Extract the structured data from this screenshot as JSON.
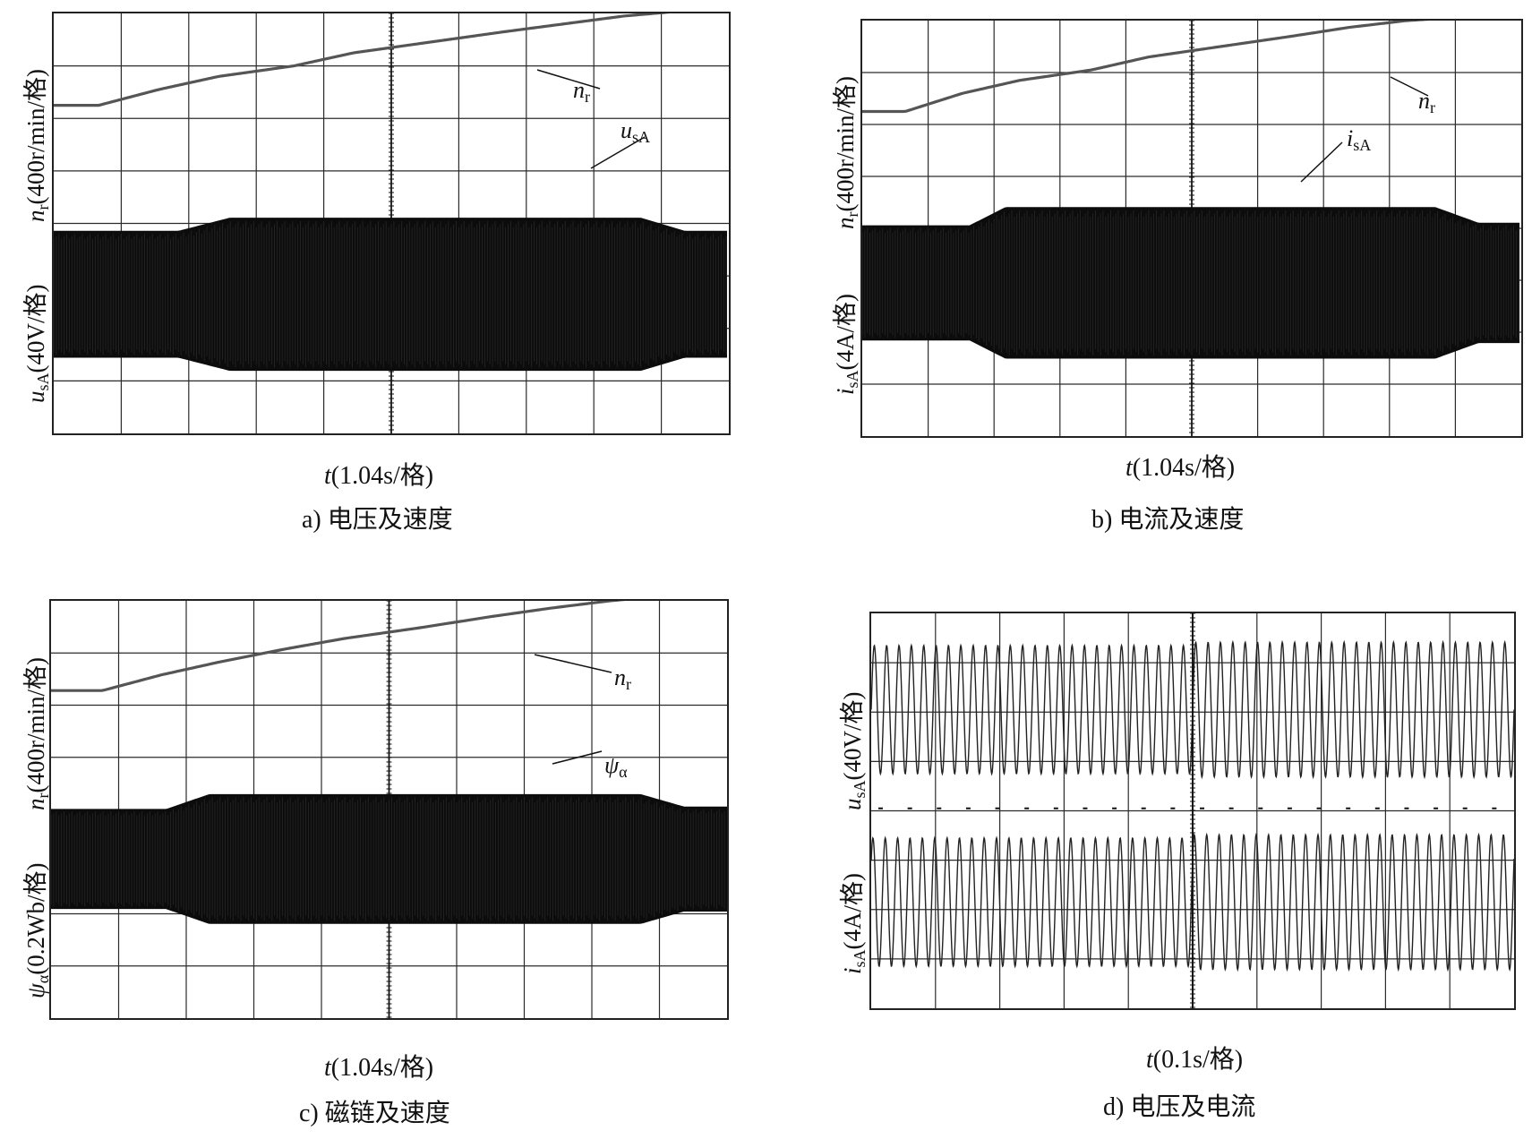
{
  "chart_data": [
    {
      "type": "line",
      "panel": "a",
      "caption": "a) 电压及速度",
      "xlabel": "t(1.04s/格)",
      "ylabel_top": "nr(400r/min/格)",
      "ylabel_bottom": "usA(40V/格)",
      "grid": true,
      "series": [
        {
          "name": "nr",
          "label_sub": "r",
          "values": [
            [
              0.0,
              0.0
            ],
            [
              0.3,
              0.0
            ],
            [
              0.7,
              0.3
            ],
            [
              1.1,
              0.55
            ],
            [
              1.6,
              0.75
            ],
            [
              2.0,
              1.0
            ],
            [
              2.5,
              1.2
            ],
            [
              3.0,
              1.4
            ],
            [
              3.4,
              1.55
            ],
            [
              3.8,
              1.7
            ],
            [
              4.2,
              1.8
            ],
            [
              4.5,
              1.82
            ]
          ]
        },
        {
          "name": "usA",
          "label_sub": "sA",
          "values": [
            [
              0.0,
              1.2
            ],
            [
              0.85,
              1.2
            ],
            [
              1.2,
              1.45
            ],
            [
              4.0,
              1.45
            ],
            [
              4.3,
              1.2
            ],
            [
              4.6,
              1.2
            ]
          ]
        }
      ]
    },
    {
      "type": "line",
      "panel": "b",
      "caption": "b) 电流及速度",
      "xlabel": "t(1.04s/格)",
      "ylabel_top": "nr(400r/min/格)",
      "ylabel_bottom": "isA(4A/格)",
      "grid": true,
      "series": [
        {
          "name": "nr",
          "label_sub": "r",
          "values": [
            [
              0.0,
              0.0
            ],
            [
              0.3,
              0.0
            ],
            [
              0.7,
              0.35
            ],
            [
              1.1,
              0.6
            ],
            [
              1.6,
              0.8
            ],
            [
              2.0,
              1.05
            ],
            [
              2.5,
              1.25
            ],
            [
              3.0,
              1.45
            ],
            [
              3.4,
              1.62
            ],
            [
              3.8,
              1.75
            ],
            [
              4.2,
              1.82
            ],
            [
              4.6,
              1.85
            ]
          ]
        },
        {
          "name": "isA",
          "label_sub": "sA",
          "values": [
            [
              0.0,
              1.1
            ],
            [
              0.75,
              1.1
            ],
            [
              1.0,
              1.45
            ],
            [
              4.0,
              1.45
            ],
            [
              4.3,
              1.15
            ],
            [
              4.6,
              1.15
            ]
          ]
        }
      ]
    },
    {
      "type": "line",
      "panel": "c",
      "caption": "c) 磁链及速度",
      "xlabel": "t(1.04s/格)",
      "ylabel_top": "nr(400r/min/格)",
      "ylabel_bottom": "ψα(0.2Wb/格)",
      "grid": true,
      "series": [
        {
          "name": "nr",
          "label_sub": "r",
          "values": [
            [
              0.0,
              0.0
            ],
            [
              0.35,
              0.0
            ],
            [
              0.75,
              0.3
            ],
            [
              1.15,
              0.55
            ],
            [
              1.6,
              0.8
            ],
            [
              2.0,
              1.0
            ],
            [
              2.5,
              1.2
            ],
            [
              3.0,
              1.42
            ],
            [
              3.4,
              1.58
            ],
            [
              3.8,
              1.72
            ],
            [
              4.2,
              1.82
            ],
            [
              4.6,
              1.85
            ]
          ]
        },
        {
          "name": "ψα",
          "label_sub": "α",
          "values": [
            [
              0.0,
              1.0
            ],
            [
              0.8,
              1.0
            ],
            [
              1.1,
              1.3
            ],
            [
              4.1,
              1.3
            ],
            [
              4.4,
              1.05
            ],
            [
              4.7,
              1.05
            ]
          ]
        }
      ]
    },
    {
      "type": "line",
      "panel": "d",
      "caption": "d) 电压及电流",
      "xlabel": "t(0.1s/格)",
      "ylabel_top": "usA(40V/格)",
      "ylabel_bottom": "isA(4A/格)",
      "grid": true,
      "series": [
        {
          "name": "usA",
          "label_sub": "sA",
          "values": [
            [
              0.0,
              1.0
            ],
            [
              0.5,
              1.0
            ],
            [
              1.0,
              1.0
            ],
            [
              1.5,
              1.0
            ],
            [
              2.0,
              1.0
            ],
            [
              2.5,
              1.0
            ],
            [
              3.0,
              1.0
            ],
            [
              3.5,
              1.0
            ],
            [
              4.0,
              1.0
            ],
            [
              4.5,
              1.0
            ],
            [
              5.0,
              1.0
            ],
            [
              5.5,
              1.0
            ],
            [
              6.0,
              1.0
            ],
            [
              6.5,
              1.0
            ],
            [
              7.0,
              1.0
            ],
            [
              7.5,
              1.0
            ],
            [
              8.0,
              1.0
            ],
            [
              8.5,
              1.0
            ],
            [
              9.0,
              1.0
            ],
            [
              9.5,
              1.0
            ],
            [
              10.0,
              1.0
            ]
          ]
        },
        {
          "name": "isA",
          "label_sub": "sA",
          "values": [
            [
              0.0,
              1.0
            ],
            [
              0.5,
              1.0
            ],
            [
              1.0,
              1.0
            ],
            [
              1.5,
              1.0
            ],
            [
              2.0,
              1.0
            ],
            [
              2.5,
              1.0
            ],
            [
              3.0,
              1.0
            ],
            [
              3.5,
              1.0
            ],
            [
              4.0,
              1.0
            ],
            [
              4.5,
              1.0
            ],
            [
              5.0,
              1.0
            ],
            [
              5.5,
              1.0
            ],
            [
              6.0,
              1.0
            ],
            [
              6.5,
              1.0
            ],
            [
              7.0,
              1.0
            ],
            [
              7.5,
              1.0
            ],
            [
              8.0,
              1.0
            ],
            [
              8.5,
              1.0
            ],
            [
              9.0,
              1.0
            ],
            [
              9.5,
              1.0
            ],
            [
              10.0,
              1.0
            ]
          ]
        }
      ]
    }
  ]
}
